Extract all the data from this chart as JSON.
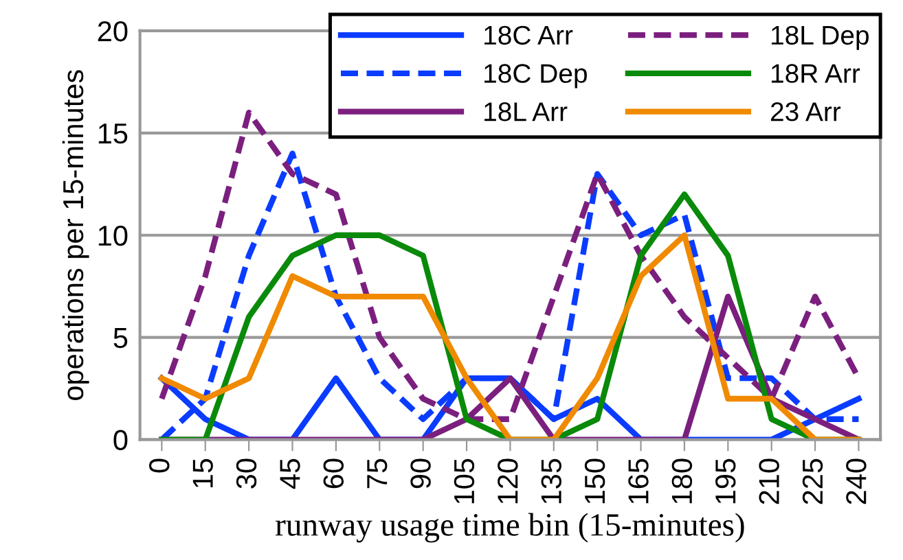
{
  "chart_data": {
    "type": "line",
    "xlabel": "runway usage time bin (15-minutes)",
    "ylabel": "operations per 15-minutes",
    "categories": [
      "0",
      "15",
      "30",
      "45",
      "60",
      "75",
      "90",
      "105",
      "120",
      "135",
      "150",
      "165",
      "180",
      "195",
      "210",
      "225",
      "240"
    ],
    "ylim": [
      0,
      20
    ],
    "yticks": [
      0,
      5,
      10,
      15,
      20
    ],
    "grid": "y",
    "legend": "top right",
    "marker": "none",
    "series": [
      {
        "name": "18C Arr",
        "color": "#0a3cff",
        "line_style": "solid",
        "values": [
          3,
          1,
          0,
          0,
          3,
          0,
          0,
          3,
          3,
          1,
          2,
          0,
          0,
          0,
          0,
          1,
          2
        ]
      },
      {
        "name": "18C Dep",
        "color": "#0a3cff",
        "line_style": "dashed",
        "values": [
          0,
          2,
          9,
          14,
          7,
          3,
          1,
          3,
          3,
          1,
          13,
          10,
          11,
          3,
          3,
          1,
          1
        ]
      },
      {
        "name": "18L Arr",
        "color": "#7b1f7f",
        "line_style": "solid",
        "values": [
          0,
          0,
          0,
          0,
          0,
          0,
          0,
          1,
          3,
          0,
          0,
          0,
          0,
          7,
          2,
          1,
          0
        ]
      },
      {
        "name": "18L Dep",
        "color": "#7b1f7f",
        "line_style": "dashed",
        "values": [
          2,
          8,
          16,
          13,
          12,
          5,
          2,
          1,
          1,
          7,
          13,
          9,
          6,
          4,
          2,
          7,
          3
        ]
      },
      {
        "name": "18R Arr",
        "color": "#0a8a0a",
        "line_style": "solid",
        "values": [
          0,
          0,
          6,
          9,
          10,
          10,
          9,
          1,
          0,
          0,
          1,
          9,
          12,
          9,
          1,
          0,
          0
        ]
      },
      {
        "name": "23 Arr",
        "color": "#f08a00",
        "line_style": "solid",
        "values": [
          3,
          2,
          3,
          8,
          7,
          7,
          7,
          3,
          0,
          0,
          3,
          8,
          10,
          2,
          2,
          0,
          0
        ]
      }
    ]
  }
}
